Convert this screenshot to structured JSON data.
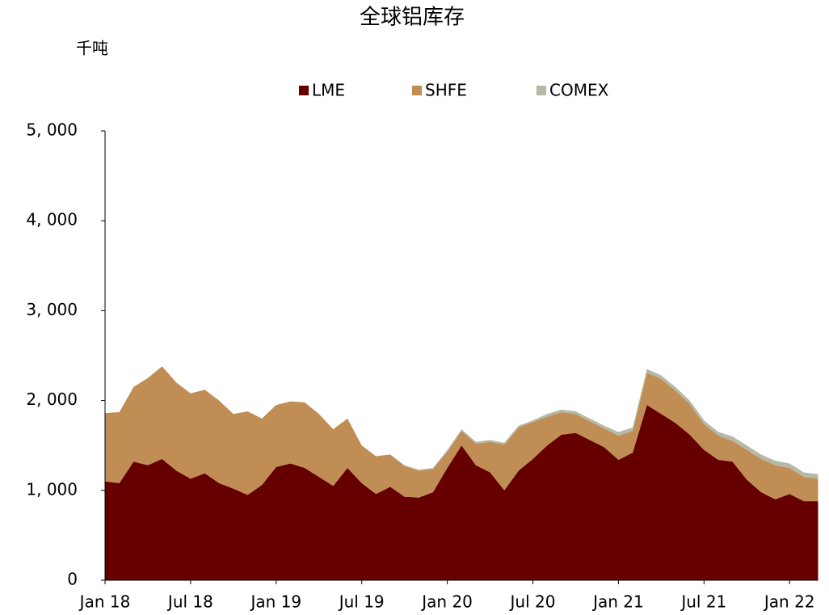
{
  "chart_data": {
    "type": "stacked-area",
    "title": "全球铝库存",
    "y_label": "千吨",
    "categories": [
      "Jan 18",
      null,
      null,
      null,
      null,
      null,
      "Jul 18",
      null,
      null,
      null,
      null,
      null,
      "Jan 19",
      null,
      null,
      null,
      null,
      null,
      "Jul 19",
      null,
      null,
      null,
      null,
      null,
      "Jan 20",
      null,
      null,
      null,
      null,
      null,
      "Jul 20",
      null,
      null,
      null,
      null,
      null,
      "Jan 21",
      null,
      null,
      null,
      null,
      null,
      "Jul 21",
      null,
      null,
      null,
      null,
      null,
      "Jan 22",
      null,
      null
    ],
    "series": [
      {
        "name": "LME",
        "color": "#660000",
        "values": [
          1100,
          1080,
          1320,
          1280,
          1350,
          1220,
          1130,
          1190,
          1080,
          1020,
          950,
          1060,
          1260,
          1300,
          1250,
          1150,
          1050,
          1250,
          1080,
          960,
          1040,
          930,
          920,
          980,
          1250,
          1500,
          1280,
          1200,
          1000,
          1220,
          1350,
          1500,
          1620,
          1640,
          1560,
          1480,
          1340,
          1420,
          1950,
          1850,
          1750,
          1620,
          1450,
          1340,
          1320,
          1120,
          980,
          900,
          960,
          880,
          880
        ]
      },
      {
        "name": "SHFE",
        "color": "#c08e54",
        "values": [
          760,
          790,
          830,
          970,
          1030,
          980,
          950,
          930,
          920,
          830,
          930,
          740,
          690,
          690,
          730,
          700,
          630,
          550,
          420,
          420,
          360,
          340,
          300,
          260,
          180,
          160,
          240,
          340,
          510,
          480,
          410,
          320,
          250,
          210,
          210,
          210,
          270,
          240,
          360,
          390,
          360,
          340,
          290,
          270,
          230,
          330,
          370,
          380,
          290,
          270,
          250
        ]
      },
      {
        "name": "COMEX",
        "color": "#b5b9a8",
        "values": [
          0,
          0,
          0,
          0,
          0,
          0,
          0,
          0,
          0,
          0,
          0,
          0,
          0,
          0,
          0,
          0,
          0,
          0,
          0,
          0,
          0,
          10,
          10,
          10,
          20,
          20,
          20,
          20,
          20,
          20,
          20,
          30,
          30,
          30,
          30,
          30,
          40,
          40,
          40,
          40,
          40,
          40,
          40,
          40,
          50,
          50,
          50,
          50,
          50,
          50,
          50
        ]
      }
    ],
    "ylim": [
      0,
      5000
    ],
    "yticks": [
      0,
      {
        "value": 1000,
        "label": "1, 000"
      },
      {
        "value": 2000,
        "label": "2, 000"
      },
      {
        "value": 3000,
        "label": "3, 000"
      },
      {
        "value": 4000,
        "label": "4, 000"
      },
      {
        "value": 5000,
        "label": "5, 000"
      }
    ]
  }
}
